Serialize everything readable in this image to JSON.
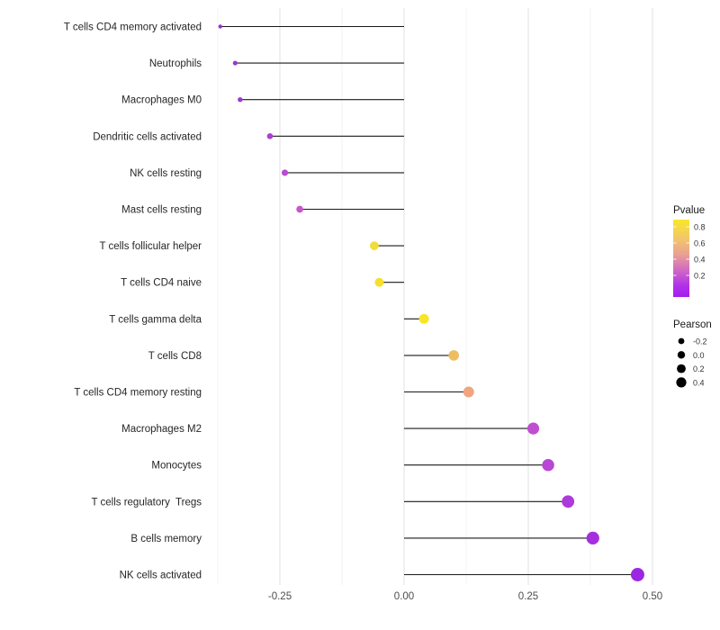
{
  "chart_data": {
    "type": "lollipop",
    "orientation": "horizontal",
    "title": "",
    "xlabel": "",
    "ylabel": "",
    "baseline": 0,
    "xlim": [
      -0.41,
      0.52
    ],
    "grid": "vertical-only",
    "x_ticks": {
      "labels": [
        "-0.25",
        "0.00",
        "0.25",
        "0.50"
      ],
      "values": [
        -0.25,
        0.0,
        0.25,
        0.5
      ]
    },
    "x_minor_values": [
      -0.375,
      -0.125,
      0.125,
      0.375
    ],
    "rows": [
      {
        "label": "T cells CD4 memory activated",
        "pearson": -0.37,
        "pvalue": 0.11,
        "color": "#9233CE"
      },
      {
        "label": "Neutrophils",
        "pearson": -0.34,
        "pvalue": 0.13,
        "color": "#9B36D1"
      },
      {
        "label": "Macrophages M0",
        "pearson": -0.33,
        "pvalue": 0.14,
        "color": "#9E38D2"
      },
      {
        "label": "Dendritic cells activated",
        "pearson": -0.27,
        "pvalue": 0.19,
        "color": "#AC3FD4"
      },
      {
        "label": "NK cells resting",
        "pearson": -0.24,
        "pvalue": 0.25,
        "color": "#BB4BD2"
      },
      {
        "label": "Mast cells resting",
        "pearson": -0.21,
        "pvalue": 0.31,
        "color": "#C757CB"
      },
      {
        "label": "T cells follicular helper",
        "pearson": -0.06,
        "pvalue": 0.79,
        "color": "#F2DC3B"
      },
      {
        "label": "T cells CD4 naive",
        "pearson": -0.05,
        "pvalue": 0.82,
        "color": "#F6E02C"
      },
      {
        "label": "T cells gamma delta",
        "pearson": 0.04,
        "pvalue": 0.85,
        "color": "#F8E524"
      },
      {
        "label": "T cells CD8",
        "pearson": 0.1,
        "pvalue": 0.63,
        "color": "#EDBD62"
      },
      {
        "label": "T cells CD4 memory resting",
        "pearson": 0.13,
        "pvalue": 0.52,
        "color": "#F0A57F"
      },
      {
        "label": "Macrophages M2",
        "pearson": 0.26,
        "pvalue": 0.27,
        "color": "#BF4ED1"
      },
      {
        "label": "Monocytes",
        "pearson": 0.29,
        "pvalue": 0.24,
        "color": "#B946D4"
      },
      {
        "label": "T cells regulatory  Tregs",
        "pearson": 0.33,
        "pvalue": 0.18,
        "color": "#AE3AD9"
      },
      {
        "label": "B cells memory",
        "pearson": 0.38,
        "pvalue": 0.13,
        "color": "#A52FDE"
      },
      {
        "label": "NK cells activated",
        "pearson": 0.47,
        "pvalue": 0.06,
        "color": "#9C27E2"
      }
    ],
    "legends": {
      "pvalue": {
        "title": "Pvalue",
        "tick_labels": [
          "0.8",
          "0.6",
          "0.4",
          "0.2"
        ],
        "tick_values": [
          0.8,
          0.6,
          0.4,
          0.2
        ],
        "range_shown": [
          0.04,
          0.88
        ],
        "gradient_stops": [
          {
            "offset": 0.0,
            "color": "#F9E72A"
          },
          {
            "offset": 0.25,
            "color": "#F2C56B"
          },
          {
            "offset": 0.45,
            "color": "#E9A192"
          },
          {
            "offset": 0.65,
            "color": "#D169C4"
          },
          {
            "offset": 0.85,
            "color": "#B133E8"
          },
          {
            "offset": 1.0,
            "color": "#A51BF0"
          }
        ]
      },
      "pearson": {
        "title": "Pearson",
        "items": [
          {
            "label": "-0.2",
            "value": -0.2
          },
          {
            "label": "0.0",
            "value": 0.0
          },
          {
            "label": "0.2",
            "value": 0.2
          },
          {
            "label": "0.4",
            "value": 0.4
          }
        ]
      }
    },
    "colors": {
      "background": "#FFFFFF",
      "grid_major": "#E2E2E2",
      "grid_minor": "#F0F0F0",
      "stem": "#1A1A1A",
      "axis_text": "#4D4D4D",
      "y_label_text": "#262626"
    }
  }
}
